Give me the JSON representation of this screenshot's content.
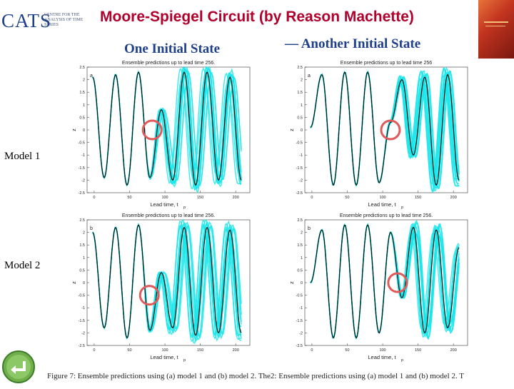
{
  "logo": {
    "text": "CATS",
    "subtitle": "CENTRE FOR THE ANALYSIS OF TIME SERIES"
  },
  "title": "Moore-Spiegel Circuit (by Reason Machette)",
  "headings": {
    "left": "One Initial State",
    "right": "— Another Initial State"
  },
  "rows": {
    "model1": "Model 1",
    "model2": "Model 2"
  },
  "caption": "Figure 7:  Ensemble predictions using (a) model 1 and (b) model 2.  The2:  Ensemble predictions using (a) model 1 and (b) model 2.  T",
  "colors": {
    "title": "#b1002b",
    "heading": "#1e3f8a",
    "ensemble": "#19e6ea",
    "truth": "#000000",
    "marker": "#e05a5a"
  },
  "icons": {
    "nav": "return-arrow-icon"
  },
  "chart_data": [
    {
      "type": "line",
      "title": "Ensemble predictions up to lead time 256.",
      "panel_letter": "a",
      "xlabel": "Lead time, t",
      "xlabel_sub": "p",
      "ylabel": "z",
      "xticks": [
        0,
        50,
        100,
        150,
        200
      ],
      "yticks": [
        2.5,
        2,
        1.5,
        1,
        0.5,
        0,
        -0.5,
        -1,
        -1.5,
        -2,
        -2.5
      ],
      "ytick_labels": [
        "2.5",
        "2",
        "1.5",
        "1",
        "0.5",
        "0",
        "-0.5",
        "-1",
        "-1.5",
        "-2",
        "-2.5"
      ],
      "xlim": [
        -10,
        220
      ],
      "ylim": [
        -2.5,
        2.5
      ],
      "marker_at": [
        82,
        0.0
      ],
      "series": [
        {
          "values": [
            2.1,
            -1.9,
            2.2,
            -2.2,
            2.3,
            -1.9,
            0.8,
            -2.0,
            2.3,
            -2.2,
            2.3,
            -2.0,
            2.1,
            -2.0
          ]
        }
      ]
    },
    {
      "type": "line",
      "title": "Ensemble predictions up to lead time 256",
      "panel_letter": "a",
      "xlabel": "Lead time, t",
      "xlabel_sub": "p",
      "ylabel": "z",
      "xticks": [
        0,
        50,
        100,
        150,
        200
      ],
      "yticks": [
        2.5,
        2,
        1.5,
        1,
        0.5,
        0,
        -0.5,
        -1,
        -1.5,
        -2,
        -2.5
      ],
      "ytick_labels": [
        "2.5",
        "2",
        "1.5",
        "1",
        "0.5",
        "0",
        "-0.5",
        "-1",
        "-1.5",
        "-2",
        "-2.5"
      ],
      "xlim": [
        -10,
        220
      ],
      "ylim": [
        -2.5,
        2.5
      ],
      "marker_at": [
        111,
        0.0
      ],
      "series": [
        {
          "values": [
            0.1,
            2.2,
            -2.2,
            2.3,
            -2.2,
            2.3,
            -2.1,
            0.3,
            2.0,
            -1.0,
            2.1,
            -2.2,
            2.2,
            -2.0
          ]
        }
      ]
    },
    {
      "type": "line",
      "title": "Ensemble predictions up to lead time 256.",
      "panel_letter": "b",
      "xlabel": "Lead time, t",
      "xlabel_sub": "p",
      "ylabel": "z",
      "xticks": [
        0,
        50,
        100,
        150,
        200
      ],
      "yticks": [
        2.5,
        2,
        1.5,
        1,
        0.5,
        0,
        -0.5,
        -1,
        -1.5,
        -2,
        -2.5
      ],
      "ytick_labels": [
        "2.5",
        "2",
        "1.5",
        "1",
        "0.5",
        "0",
        "-0.5",
        "-1",
        "-1.5",
        "-2",
        "-2.5"
      ],
      "xlim": [
        -10,
        220
      ],
      "ylim": [
        -2.5,
        2.5
      ],
      "marker_at": [
        78,
        -0.5
      ],
      "series": [
        {
          "values": [
            2.0,
            -1.8,
            2.2,
            -2.2,
            2.3,
            -1.9,
            0.4,
            -1.8,
            2.2,
            -2.1,
            2.2,
            -2.0,
            2.1,
            -2.0
          ]
        }
      ]
    },
    {
      "type": "line",
      "title": "Ensemble predictions up to lead time 256.",
      "panel_letter": "b",
      "xlabel": "Lead time, t",
      "xlabel_sub": "p",
      "ylabel": "z",
      "xticks": [
        0,
        50,
        100,
        150,
        200
      ],
      "yticks": [
        2.5,
        2,
        1.5,
        1,
        0.5,
        0,
        -0.5,
        -1,
        -1.5,
        -2,
        -2.5
      ],
      "ytick_labels": [
        "2.5",
        "2",
        "1.5",
        "1",
        "0.5",
        "0",
        "-0.5",
        "-1",
        "-1.5",
        "-2",
        "-2.5"
      ],
      "xlim": [
        -10,
        220
      ],
      "ylim": [
        -2.5,
        2.5
      ],
      "marker_at": [
        121,
        0.0
      ],
      "series": [
        {
          "values": [
            0.0,
            2.1,
            -2.2,
            2.3,
            -2.2,
            2.3,
            -2.0,
            2.0,
            -0.6,
            2.2,
            -2.0,
            2.1,
            -1.8,
            1.4
          ]
        }
      ]
    }
  ]
}
